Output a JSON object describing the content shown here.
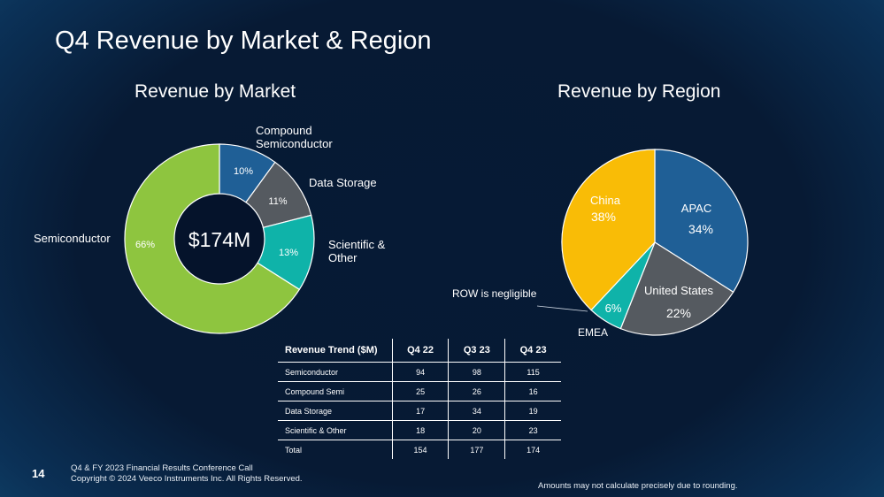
{
  "slide": {
    "title": "Q4 Revenue by Market & Region",
    "page_number": "14",
    "footer_line1": "Q4 & FY 2023 Financial Results Conference Call",
    "footer_line2": "Copyright © 2024 Veeco Instruments Inc. All Rights Reserved.",
    "disclaimer": "Amounts may not calculate precisely due to rounding."
  },
  "chart_data": [
    {
      "type": "pie",
      "variant": "donut",
      "title": "Revenue by Market",
      "center_label": "$174M",
      "slices": [
        {
          "label": "Compound Semiconductor",
          "value": 10,
          "value_label": "10%",
          "color": "#1f5f96"
        },
        {
          "label": "Data Storage",
          "value": 11,
          "value_label": "11%",
          "color": "#555a60"
        },
        {
          "label": "Scientific & Other",
          "value": 13,
          "value_label": "13%",
          "color": "#0fb3a9"
        },
        {
          "label": "Semiconductor",
          "value": 66,
          "value_label": "66%",
          "color": "#8ec53f"
        }
      ]
    },
    {
      "type": "pie",
      "title": "Revenue by Region",
      "annotation": "ROW is negligible",
      "slices": [
        {
          "label": "APAC",
          "value": 34,
          "value_label": "34%",
          "color": "#1f5f96"
        },
        {
          "label": "United States",
          "value": 22,
          "value_label": "22%",
          "color": "#555a60"
        },
        {
          "label": "EMEA",
          "value": 6,
          "value_label": "6%",
          "color": "#0fb3a9"
        },
        {
          "label": "China",
          "value": 38,
          "value_label": "38%",
          "color": "#f9bc06"
        }
      ]
    },
    {
      "type": "table",
      "columns": [
        "Revenue Trend ($M)",
        "Q4 22",
        "Q3 23",
        "Q4 23"
      ],
      "rows": [
        [
          "Semiconductor",
          "94",
          "98",
          "115"
        ],
        [
          "Compound Semi",
          "25",
          "26",
          "16"
        ],
        [
          "Data Storage",
          "17",
          "34",
          "19"
        ],
        [
          "Scientific & Other",
          "18",
          "20",
          "23"
        ],
        [
          "Total",
          "154",
          "177",
          "174"
        ]
      ]
    }
  ]
}
